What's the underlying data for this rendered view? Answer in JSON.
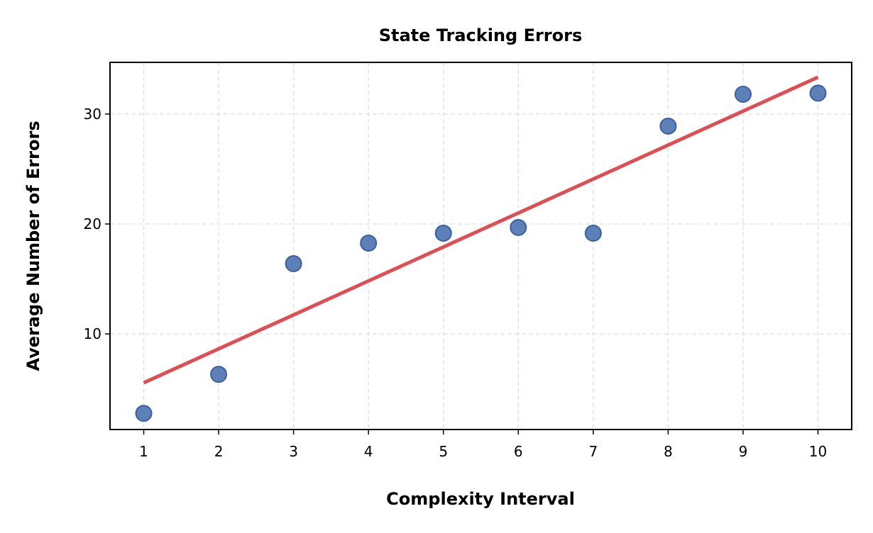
{
  "chart_data": {
    "type": "scatter",
    "title": "State Tracking Errors",
    "x_label": "Complexity Interval",
    "y_label": "Average Number of Errors",
    "series": [
      {
        "color": "#4c72b0",
        "x": [
          1,
          2,
          3,
          4,
          5,
          6,
          7,
          8,
          9,
          10
        ],
        "values": [
          2.77,
          6.32,
          16.39,
          18.26,
          19.16,
          19.68,
          19.16,
          28.9,
          31.8,
          31.9
        ]
      }
    ],
    "trend": {
      "color": "#dd4f54",
      "x": [
        1,
        10
      ],
      "values": [
        5.55,
        33.35
      ]
    },
    "xlim": [
      0.55,
      10.45
    ],
    "ylim": [
      1.3,
      34.7
    ],
    "xticks": [
      1,
      2,
      3,
      4,
      5,
      6,
      7,
      8,
      9,
      10
    ],
    "yticks": [
      10,
      20,
      30
    ],
    "grid": true
  }
}
